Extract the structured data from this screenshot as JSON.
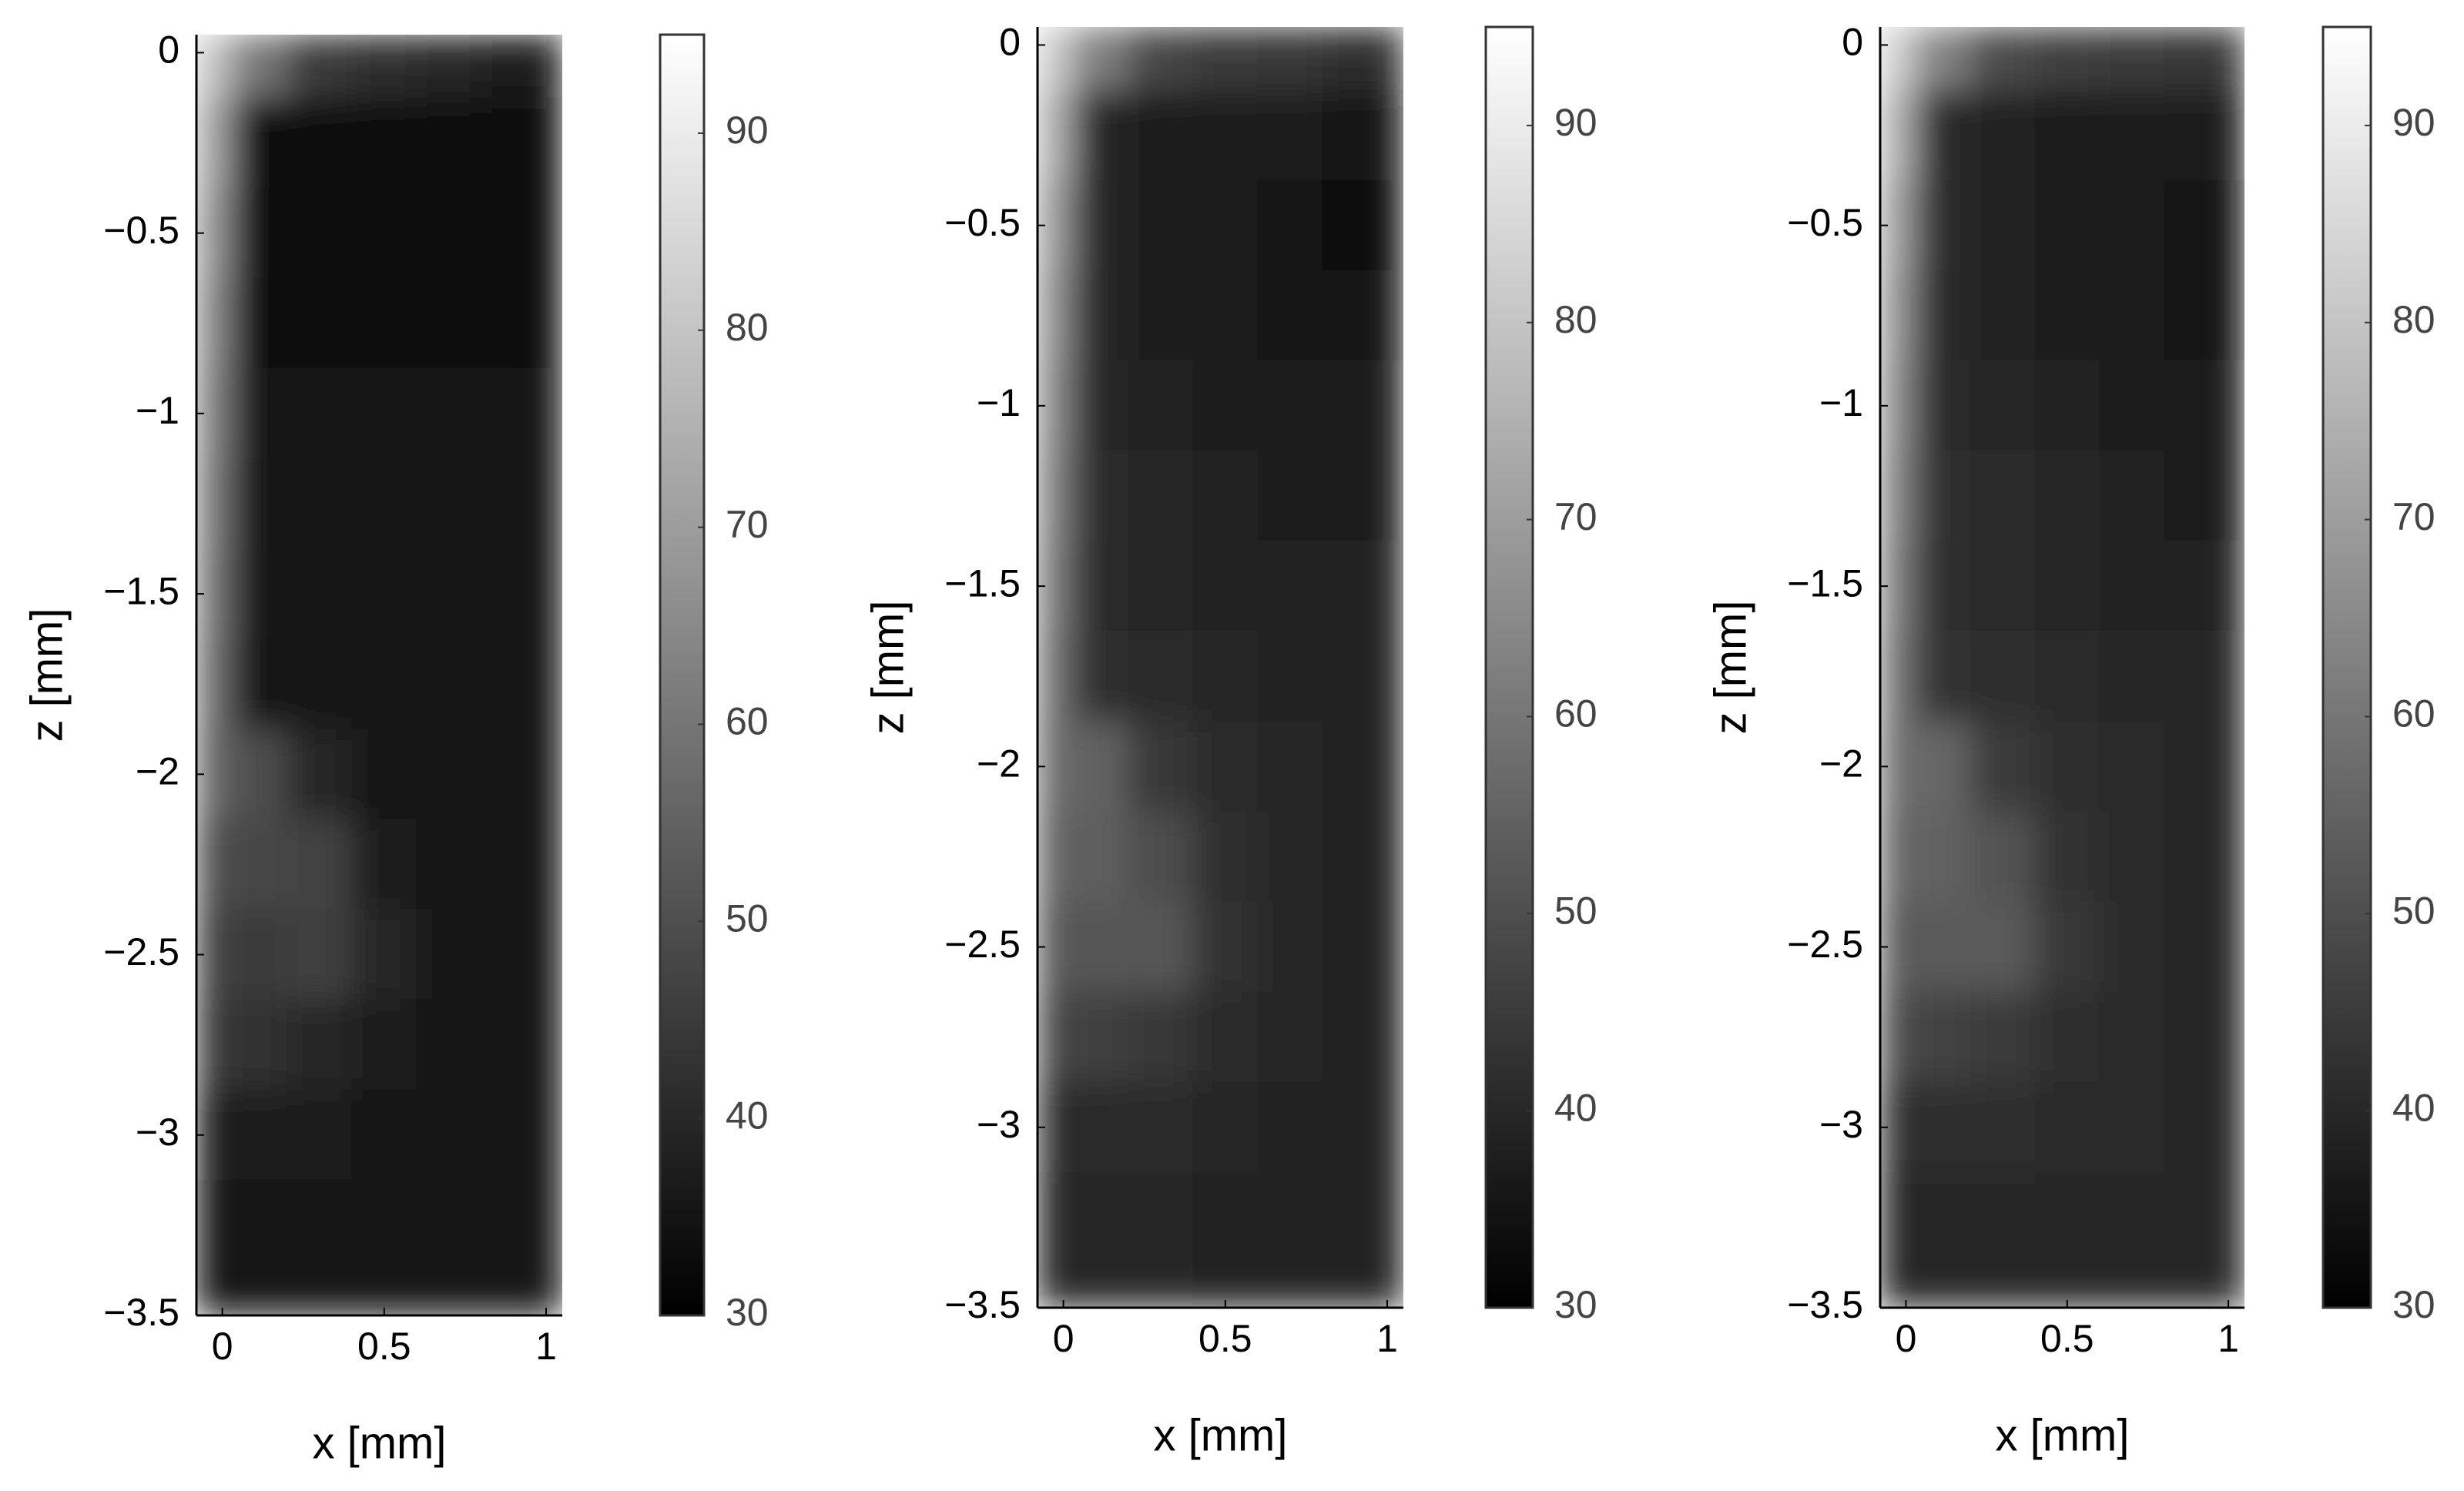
{
  "chart_data": [
    {
      "type": "heatmap",
      "xlabel": "x [mm]",
      "ylabel": "z [mm]",
      "colormap": "gray",
      "x": [
        -0.04,
        0.1,
        0.3,
        0.5,
        0.7,
        0.9
      ],
      "y": [
        0,
        -0.25,
        -0.5,
        -0.75,
        -1,
        -1.25,
        -1.5,
        -1.75,
        -2,
        -2.25,
        -2.5,
        -2.75,
        -3,
        -3.25
      ],
      "values": [
        [
          80,
          60,
          45,
          42,
          40,
          38
        ],
        [
          72,
          33,
          32,
          32,
          32,
          32
        ],
        [
          68,
          33,
          32,
          32,
          32,
          32
        ],
        [
          65,
          34,
          34,
          34,
          34,
          34
        ],
        [
          63,
          35,
          35,
          35,
          35,
          35
        ],
        [
          61,
          35,
          35,
          35,
          35,
          35
        ],
        [
          60,
          36,
          36,
          36,
          36,
          36
        ],
        [
          58,
          36,
          36,
          36,
          36,
          36
        ],
        [
          56,
          50,
          40,
          36,
          36,
          36
        ],
        [
          50,
          48,
          47,
          38,
          36,
          36
        ],
        [
          46,
          45,
          46,
          40,
          36,
          36
        ],
        [
          44,
          43,
          40,
          37,
          36,
          36
        ],
        [
          38,
          37,
          37,
          36,
          36,
          36
        ],
        [
          36,
          36,
          36,
          36,
          36,
          36
        ]
      ],
      "xlim": [
        -0.08,
        1.05
      ],
      "ylim": [
        -3.5,
        0.05
      ],
      "xticks": [
        0,
        0.5,
        1
      ],
      "yticks": [
        0,
        {
          "value": -0.5,
          "label": "−0.5"
        },
        {
          "value": -1,
          "label": "−1"
        },
        {
          "value": -1.5,
          "label": "−1.5"
        },
        {
          "value": -2,
          "label": "−2"
        },
        {
          "value": -2.5,
          "label": "−2.5"
        },
        {
          "value": -3,
          "label": "−3"
        },
        {
          "value": -3.5,
          "label": "−3.5"
        }
      ],
      "clim": [
        30,
        95
      ],
      "colorbar_ticks": [
        30,
        40,
        50,
        60,
        70,
        80,
        90
      ]
    },
    {
      "type": "heatmap",
      "xlabel": "x [mm]",
      "ylabel": "z [mm]",
      "colormap": "gray",
      "x": [
        -0.04,
        0.1,
        0.3,
        0.5,
        0.7,
        0.9
      ],
      "y": [
        0,
        -0.25,
        -0.5,
        -0.75,
        -1,
        -1.25,
        -1.5,
        -1.75,
        -2,
        -2.25,
        -2.5,
        -2.75,
        -3,
        -3.25
      ],
      "values": [
        [
          82,
          62,
          48,
          45,
          44,
          42
        ],
        [
          75,
          40,
          38,
          37,
          37,
          36
        ],
        [
          70,
          40,
          38,
          37,
          35,
          34
        ],
        [
          67,
          40,
          38,
          37,
          36,
          35
        ],
        [
          65,
          40,
          39,
          38,
          37,
          37
        ],
        [
          63,
          41,
          40,
          39,
          38,
          38
        ],
        [
          61,
          41,
          40,
          39,
          39,
          39
        ],
        [
          59,
          42,
          41,
          40,
          39,
          39
        ],
        [
          57,
          55,
          44,
          41,
          40,
          39
        ],
        [
          55,
          54,
          50,
          42,
          40,
          39
        ],
        [
          52,
          52,
          52,
          43,
          40,
          39
        ],
        [
          48,
          46,
          44,
          41,
          40,
          39
        ],
        [
          42,
          41,
          41,
          40,
          39,
          39
        ],
        [
          40,
          40,
          40,
          39,
          39,
          39
        ]
      ],
      "xlim": [
        -0.08,
        1.05
      ],
      "ylim": [
        -3.5,
        0.05
      ],
      "xticks": [
        0,
        0.5,
        1
      ],
      "yticks": [
        0,
        {
          "value": -0.5,
          "label": "−0.5"
        },
        {
          "value": -1,
          "label": "−1"
        },
        {
          "value": -1.5,
          "label": "−1.5"
        },
        {
          "value": -2,
          "label": "−2"
        },
        {
          "value": -2.5,
          "label": "−2.5"
        },
        {
          "value": -3,
          "label": "−3"
        },
        {
          "value": -3.5,
          "label": "−3.5"
        }
      ],
      "clim": [
        30,
        95
      ],
      "colorbar_ticks": [
        30,
        40,
        50,
        60,
        70,
        80,
        90
      ]
    },
    {
      "type": "heatmap",
      "xlabel": "x [mm]",
      "ylabel": "z [mm]",
      "colormap": "gray",
      "x": [
        -0.04,
        0.1,
        0.3,
        0.5,
        0.7,
        0.9
      ],
      "y": [
        0,
        -0.25,
        -0.5,
        -0.75,
        -1,
        -1.25,
        -1.5,
        -1.75,
        -2,
        -2.25,
        -2.5,
        -2.75,
        -3,
        -3.25
      ],
      "values": [
        [
          83,
          63,
          49,
          46,
          45,
          44
        ],
        [
          76,
          41,
          39,
          38,
          38,
          37
        ],
        [
          71,
          41,
          39,
          38,
          37,
          36
        ],
        [
          68,
          41,
          39,
          38,
          37,
          36
        ],
        [
          66,
          41,
          40,
          39,
          38,
          37
        ],
        [
          64,
          42,
          41,
          40,
          39,
          38
        ],
        [
          62,
          42,
          41,
          40,
          39,
          39
        ],
        [
          60,
          43,
          42,
          41,
          40,
          40
        ],
        [
          58,
          56,
          45,
          42,
          41,
          40
        ],
        [
          56,
          55,
          51,
          43,
          41,
          40
        ],
        [
          53,
          53,
          53,
          44,
          41,
          40
        ],
        [
          49,
          47,
          45,
          42,
          41,
          40
        ],
        [
          43,
          42,
          42,
          41,
          41,
          40
        ],
        [
          41,
          40,
          40,
          40,
          40,
          40
        ]
      ],
      "xlim": [
        -0.08,
        1.05
      ],
      "ylim": [
        -3.5,
        0.05
      ],
      "xticks": [
        0,
        0.5,
        1
      ],
      "yticks": [
        0,
        {
          "value": -0.5,
          "label": "−0.5"
        },
        {
          "value": -1,
          "label": "−1"
        },
        {
          "value": -1.5,
          "label": "−1.5"
        },
        {
          "value": -2,
          "label": "−2"
        },
        {
          "value": -2.5,
          "label": "−2.5"
        },
        {
          "value": -3,
          "label": "−3"
        },
        {
          "value": -3.5,
          "label": "−3.5"
        }
      ],
      "clim": [
        30,
        95
      ],
      "colorbar_ticks": [
        30,
        40,
        50,
        60,
        70,
        80,
        90
      ]
    }
  ]
}
